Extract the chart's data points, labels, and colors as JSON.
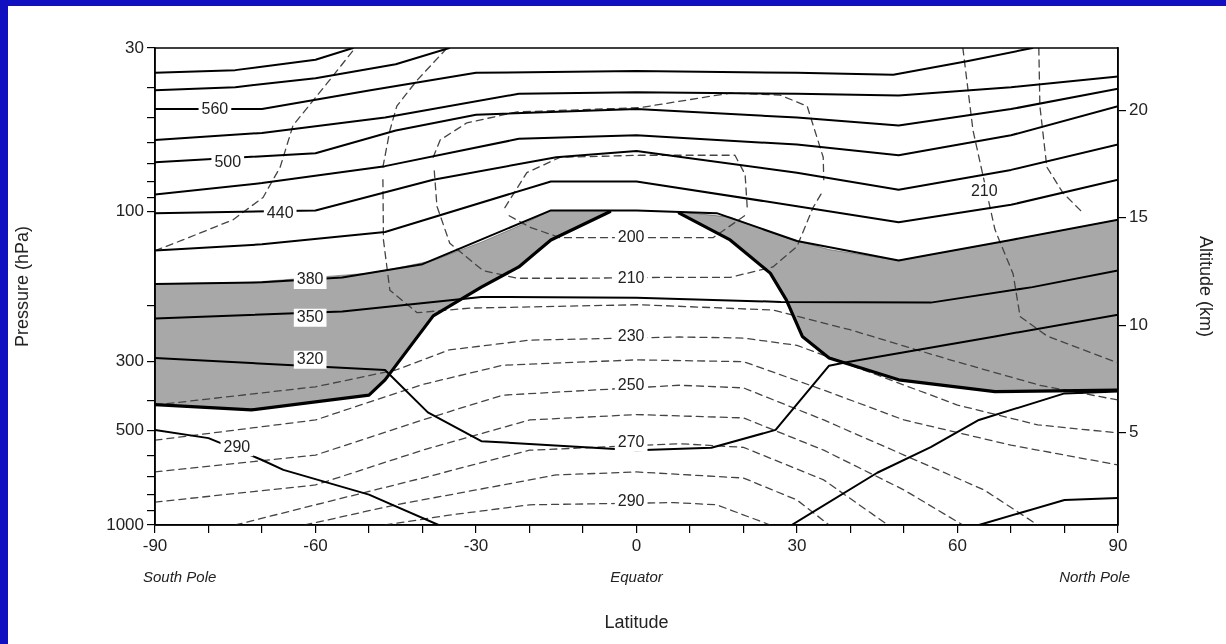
{
  "chart_data": {
    "type": "line",
    "xlabel": "Latitude",
    "ylabel": "Pressure (hPa)",
    "y2label": "Altitude (km)",
    "log": "y",
    "grid": false,
    "xlim": [
      -90,
      90
    ],
    "xticks": [
      -90,
      {
        "value": -80,
        "label": null
      },
      {
        "value": -70,
        "label": null
      },
      -60,
      {
        "value": -50,
        "label": null
      },
      {
        "value": -40,
        "label": null
      },
      -30,
      {
        "value": -20,
        "label": null
      },
      {
        "value": -10,
        "label": null
      },
      0,
      {
        "value": 10,
        "label": null
      },
      {
        "value": 20,
        "label": null
      },
      30,
      {
        "value": 40,
        "label": null
      },
      {
        "value": 50,
        "label": null
      },
      60,
      {
        "value": 70,
        "label": null
      },
      {
        "value": 80,
        "label": null
      },
      90
    ],
    "ylim": [
      1000,
      30
    ],
    "yticks": [
      30,
      {
        "value": 40,
        "label": null
      },
      {
        "value": 50,
        "label": null
      },
      {
        "value": 60,
        "label": null
      },
      {
        "value": 70,
        "label": null
      },
      {
        "value": 80,
        "label": null
      },
      {
        "value": 90,
        "label": null
      },
      100,
      {
        "value": 200,
        "label": null
      },
      300,
      {
        "value": 400,
        "label": null
      },
      500,
      {
        "value": 600,
        "label": null
      },
      {
        "value": 700,
        "label": null
      },
      {
        "value": 800,
        "label": null
      },
      {
        "value": 900,
        "label": null
      },
      1000
    ],
    "y2lim": [
      0.7,
      22.9
    ],
    "y2ticks": [
      5,
      10,
      15,
      20
    ],
    "series": [
      {
        "type": "line",
        "color": "#000000",
        "line_style": "solid",
        "x": [
          -90,
          -72,
          -50,
          -47,
          -38,
          -29,
          -22,
          -16,
          -5
        ],
        "values": [
          413,
          429,
          385,
          344,
          215,
          174,
          150,
          123,
          100
        ],
        "lower": [
          170,
          168,
          157,
          154,
          143,
          125,
          111,
          99,
          99
        ],
        "upper": [
          413,
          429,
          385,
          344,
          215,
          174,
          150,
          123,
          100
        ]
      },
      {
        "type": "line",
        "color": "#000000",
        "line_style": "solid",
        "x": [
          8,
          17.5,
          25,
          28,
          31,
          36,
          49,
          67,
          90
        ],
        "values": [
          101,
          123,
          157,
          191,
          250,
          293,
          344,
          375,
          371
        ],
        "lower": [
          100,
          104,
          116,
          121,
          125,
          132,
          143,
          126,
          106
        ],
        "upper": [
          101,
          123,
          157,
          191,
          250,
          293,
          344,
          375,
          371
        ]
      },
      {
        "type": "line",
        "color": "#000000",
        "line_style": "solid",
        "x": [
          -90,
          -75,
          -60,
          -53
        ],
        "values": [
          36,
          35.3,
          32.7,
          30
        ]
      },
      {
        "type": "line",
        "color": "#000000",
        "line_style": "solid",
        "x": [
          -90,
          -75,
          -60,
          -45,
          -35
        ],
        "values": [
          40.9,
          40,
          37.5,
          33.8,
          30
        ]
      },
      {
        "type": "line",
        "color": "#000000",
        "line_style": "solid",
        "x": [
          -90,
          -70,
          -50,
          -30,
          0,
          30,
          48,
          62,
          74
        ],
        "values": [
          47,
          47,
          41,
          36,
          35.5,
          36,
          36.5,
          33,
          30
        ]
      },
      {
        "type": "line",
        "color": "#000000",
        "line_style": "solid",
        "x": [
          -90,
          -70,
          -47,
          -22,
          0,
          30,
          49,
          70,
          90
        ],
        "values": [
          59,
          56,
          50,
          42,
          41.5,
          42,
          42.5,
          40,
          37
        ]
      },
      {
        "type": "line",
        "color": "#000000",
        "line_style": "solid",
        "x": [
          -90,
          -60,
          -45,
          -30,
          0,
          30,
          49,
          70,
          90
        ],
        "values": [
          69.5,
          65,
          55,
          49,
          47,
          50,
          53,
          47,
          40.5
        ]
      },
      {
        "type": "line",
        "color": "#000000",
        "line_style": "solid",
        "x": [
          -90,
          -70,
          -47,
          -22,
          0,
          30,
          49,
          70,
          90
        ],
        "values": [
          88,
          81,
          71.5,
          58.5,
          57,
          61,
          66,
          57,
          46
        ]
      },
      {
        "type": "line",
        "color": "#000000",
        "line_style": "solid",
        "x": [
          -90,
          -60,
          -38,
          -15,
          0,
          30,
          49,
          70,
          90
        ],
        "values": [
          101,
          99,
          79,
          67,
          64,
          75,
          85,
          73.5,
          61
        ]
      },
      {
        "type": "line",
        "color": "#000000",
        "line_style": "solid",
        "x": [
          -90,
          -70,
          -47,
          -16,
          0,
          30,
          49,
          70,
          90
        ],
        "values": [
          133,
          127,
          116,
          80,
          80,
          96,
          108,
          95,
          79
        ]
      },
      {
        "type": "line",
        "color": "#000000",
        "line_style": "solid",
        "x": [
          -90,
          -70,
          -55,
          -40,
          -16,
          0,
          15,
          30,
          49,
          70,
          90
        ],
        "values": [
          170,
          168,
          162,
          147,
          99,
          99,
          101,
          124,
          143,
          123,
          106
        ]
      },
      {
        "type": "line",
        "color": "#000000",
        "line_style": "solid",
        "x": [
          -90,
          -55,
          -29,
          0,
          27,
          55,
          74,
          90
        ],
        "values": [
          219,
          208,
          187,
          188,
          194,
          195,
          174,
          154
        ]
      },
      {
        "type": "line",
        "color": "#000000",
        "line_style": "solid",
        "x": [
          -90,
          -47,
          -39,
          -29,
          0,
          14,
          26,
          36,
          39,
          67,
          90
        ],
        "values": [
          293,
          320,
          437,
          540,
          577,
          567,
          497,
          310,
          303,
          250,
          213
        ]
      },
      {
        "type": "line",
        "color": "#000000",
        "line_style": "solid",
        "x": [
          -90,
          -80,
          -70,
          -66,
          -50,
          -37
        ],
        "values": [
          497,
          528,
          620,
          667,
          800,
          1000
        ]
      },
      {
        "type": "line",
        "color": "#000000",
        "line_style": "solid",
        "x": [
          29,
          45,
          55,
          64,
          80,
          90
        ],
        "values": [
          1000,
          681,
          564,
          462,
          380,
          375
        ]
      },
      {
        "type": "line",
        "color": "#000000",
        "line_style": "solid",
        "x": [
          64,
          80,
          90
        ],
        "values": [
          1000,
          832,
          820
        ]
      },
      {
        "type": "line",
        "color": "#444444",
        "line_style": "dashed",
        "x": [
          -24.6,
          -20.5,
          -14.3,
          0.7,
          18.4,
          20.3,
          20.7
        ],
        "values": [
          97,
          75,
          67,
          66,
          66,
          76,
          97
        ]
      },
      {
        "type": "line",
        "color": "#444444",
        "line_style": "dashed",
        "x": [
          -23.8,
          -19.9,
          -14.3,
          14.3,
          20.2
        ],
        "values": [
          103,
          112,
          121,
          121,
          103
        ]
      },
      {
        "type": "line",
        "color": "#444444",
        "line_style": "dashed",
        "x": [
          -38,
          -36.7,
          -31.7,
          -22.3,
          0.7,
          17.5,
          26.8,
          31.9,
          34.9,
          35
        ],
        "values": [
          67,
          59,
          52,
          48,
          46.5,
          41.8,
          42.4,
          46,
          67,
          79
        ]
      },
      {
        "type": "line",
        "color": "#444444",
        "line_style": "dashed",
        "x": [
          -37.8,
          -37.3,
          -34.9,
          -28.7,
          -22.3,
          -10,
          5,
          17.5,
          25.5,
          30,
          33,
          34.8
        ],
        "values": [
          74,
          96,
          126,
          154,
          163,
          163,
          162,
          162,
          150,
          129,
          97,
          86
        ]
      },
      {
        "type": "line",
        "color": "#444444",
        "line_style": "dashed",
        "x": [
          61,
          62.9,
          67,
          70.4,
          71.7,
          76.7,
          90
        ],
        "values": [
          30,
          55,
          114,
          158,
          216,
          249,
          304
        ]
      },
      {
        "type": "line",
        "color": "#444444",
        "line_style": "dashed",
        "x": [
          75.2,
          75.4,
          76.7,
          79.7,
          83.5
        ],
        "values": [
          30,
          46,
          72,
          87,
          101
        ]
      },
      {
        "type": "line",
        "color": "#444444",
        "line_style": "dashed",
        "x": [
          -90,
          -84.8,
          -75.4,
          -69.8,
          -66.6,
          -64.2,
          -57.9,
          -52.6
        ],
        "values": [
          133,
          123,
          106,
          90,
          72,
          53,
          39,
          30
        ]
      },
      {
        "type": "line",
        "color": "#444444",
        "line_style": "dashed",
        "x": [
          -47.4,
          -46.1,
          -44.8,
          -41,
          -35.4
        ],
        "values": [
          72,
          55,
          46,
          38,
          30
        ]
      },
      {
        "type": "line",
        "color": "#444444",
        "line_style": "dashed",
        "x": [
          -47.4,
          -47.3,
          -46.1,
          -41,
          -31.1,
          0.7,
          25.5,
          39.9,
          58.6,
          75.4,
          90
        ],
        "values": [
          79,
          123,
          178,
          210,
          203,
          198,
          206,
          238,
          297,
          358,
          399
        ]
      },
      {
        "type": "line",
        "color": "#444444",
        "line_style": "dashed",
        "x": [
          -90,
          -60,
          -45,
          -35,
          -20,
          8,
          20,
          30,
          45,
          60,
          75,
          90
        ],
        "values": [
          414,
          362,
          320,
          276,
          257,
          251,
          253,
          267,
          332,
          414,
          479,
          508
        ]
      },
      {
        "type": "line",
        "color": "#444444",
        "line_style": "dashed",
        "x": [
          -90,
          -60,
          -40,
          -25,
          0,
          20,
          35,
          50,
          70,
          90
        ],
        "values": [
          536,
          462,
          356,
          309,
          297,
          301,
          371,
          462,
          556,
          643
        ]
      },
      {
        "type": "line",
        "color": "#444444",
        "line_style": "dashed",
        "x": [
          -90,
          -60,
          -40,
          -25,
          8,
          20,
          35,
          50,
          65,
          75
        ],
        "values": [
          677,
          598,
          462,
          385,
          358,
          365,
          462,
          598,
          773,
          1000
        ]
      },
      {
        "type": "line",
        "color": "#444444",
        "line_style": "dashed",
        "x": [
          -90,
          -60,
          -40,
          -20,
          0,
          20,
          35,
          50,
          61
        ],
        "values": [
          845,
          745,
          577,
          462,
          444,
          455,
          577,
          773,
          1000
        ]
      },
      {
        "type": "line",
        "color": "#444444",
        "line_style": "dashed",
        "x": [
          -75,
          -60,
          -40,
          -20,
          8,
          20,
          35,
          47
        ],
        "values": [
          1000,
          862,
          708,
          577,
          550,
          565,
          718,
          1000
        ]
      },
      {
        "type": "line",
        "color": "#444444",
        "line_style": "dashed",
        "x": [
          -62,
          -45,
          -30,
          -15,
          0,
          20,
          30,
          36
        ],
        "values": [
          1000,
          862,
          773,
          692,
          677,
          708,
          832,
          1000
        ]
      },
      {
        "type": "line",
        "color": "#444444",
        "line_style": "dashed",
        "x": [
          -47,
          -35,
          -20,
          7,
          15,
          25
        ],
        "values": [
          1000,
          930,
          862,
          848,
          862,
          1000
        ]
      }
    ],
    "annotations": [
      {
        "text": "560",
        "x": -78.8,
        "y": 47.3
      },
      {
        "text": "500",
        "x": -76.4,
        "y": 69.5
      },
      {
        "text": "440",
        "x": -66.6,
        "y": 101
      },
      {
        "text": "380",
        "x": -61,
        "y": 165
      },
      {
        "text": "350",
        "x": -61,
        "y": 218
      },
      {
        "text": "320",
        "x": -61,
        "y": 297
      },
      {
        "text": "290",
        "x": -74.7,
        "y": 565
      },
      {
        "text": "200",
        "x": -1,
        "y": 121
      },
      {
        "text": "210",
        "x": -1,
        "y": 163
      },
      {
        "text": "230",
        "x": -1,
        "y": 251
      },
      {
        "text": "250",
        "x": -1,
        "y": 360
      },
      {
        "text": "270",
        "x": -1,
        "y": 545
      },
      {
        "text": "290",
        "x": -1,
        "y": 845
      },
      {
        "text": "210",
        "x": 65,
        "y": 86
      },
      "South Pole",
      "Equator",
      "North Pole"
    ]
  }
}
